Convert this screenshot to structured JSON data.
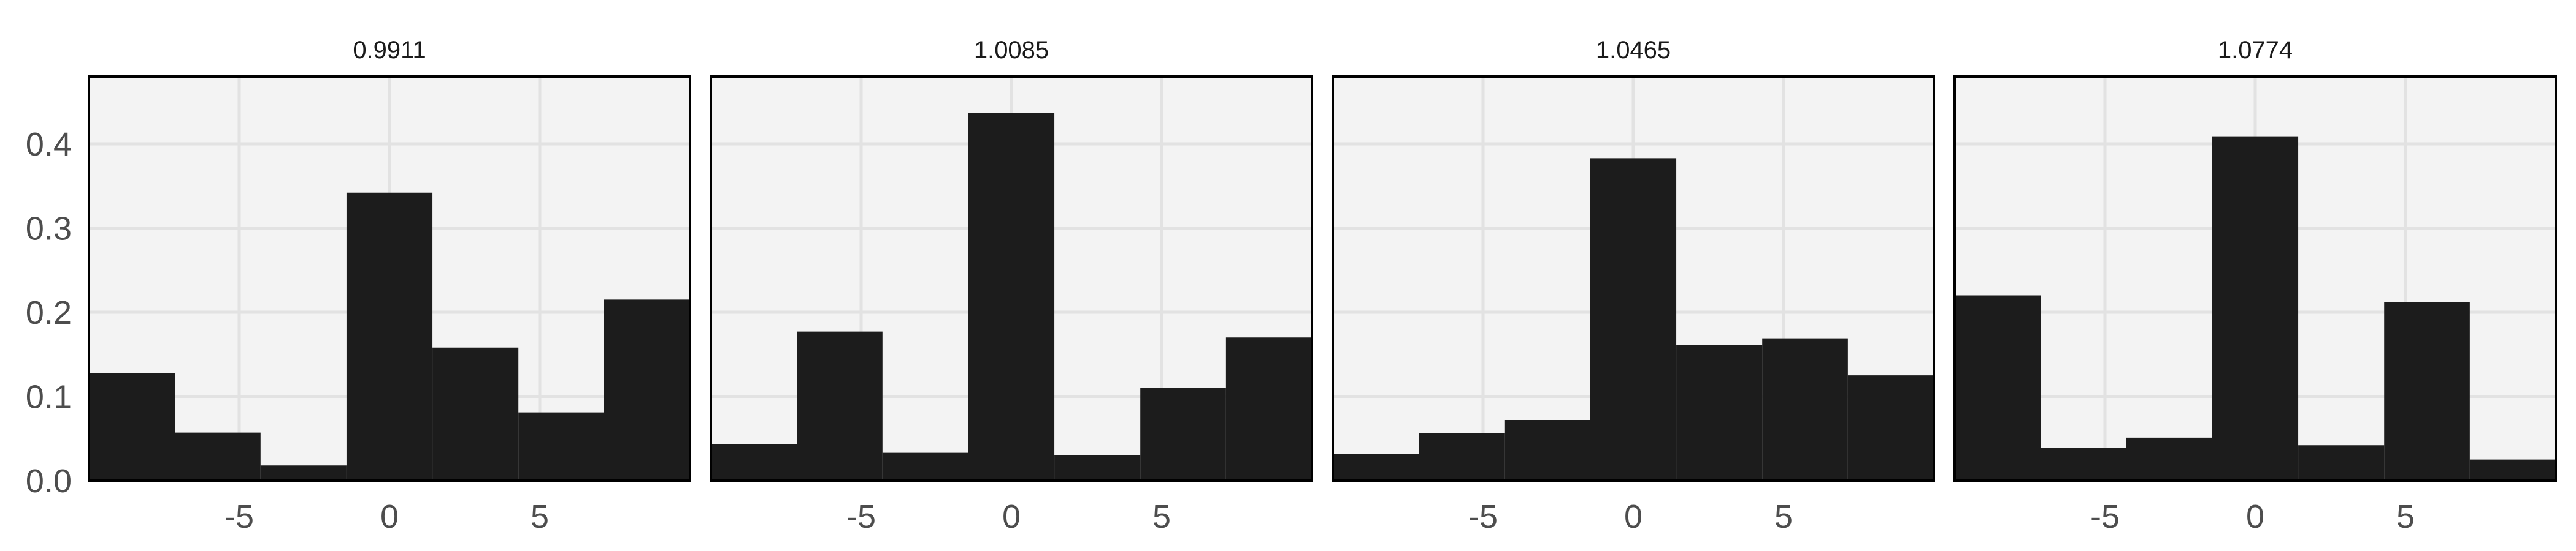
{
  "chart_data": {
    "type": "bar",
    "title": "",
    "xlabel": "",
    "ylabel": "",
    "x_ticks": [
      -5,
      0,
      5
    ],
    "y_ticks": [
      0.0,
      0.1,
      0.2,
      0.3,
      0.4
    ],
    "y_tick_labels": [
      "0.0",
      "0.1",
      "0.2",
      "0.3",
      "0.4"
    ],
    "x_tick_labels": [
      "-5",
      "0",
      "5"
    ],
    "xlim": [
      -10,
      10
    ],
    "ylim": [
      0,
      0.48
    ],
    "grid": true,
    "colors": {
      "bar": "#1c1c1c",
      "panel_background": "#f3f3f3",
      "grid": "#e2e2e2",
      "panel_border": "#000000"
    },
    "panels": [
      {
        "title": "0.9911",
        "bins": [
          {
            "x0": -10.0,
            "x1": -7.14,
            "value": 0.128
          },
          {
            "x0": -7.14,
            "x1": -4.29,
            "value": 0.057
          },
          {
            "x0": -4.29,
            "x1": -1.43,
            "value": 0.018
          },
          {
            "x0": -1.43,
            "x1": 1.43,
            "value": 0.342
          },
          {
            "x0": 1.43,
            "x1": 4.29,
            "value": 0.158
          },
          {
            "x0": 4.29,
            "x1": 7.14,
            "value": 0.081
          },
          {
            "x0": 7.14,
            "x1": 10.0,
            "value": 0.215
          }
        ]
      },
      {
        "title": "1.0085",
        "bins": [
          {
            "x0": -10.0,
            "x1": -7.14,
            "value": 0.043
          },
          {
            "x0": -7.14,
            "x1": -4.29,
            "value": 0.177
          },
          {
            "x0": -4.29,
            "x1": -1.43,
            "value": 0.033
          },
          {
            "x0": -1.43,
            "x1": 1.43,
            "value": 0.437
          },
          {
            "x0": 1.43,
            "x1": 4.29,
            "value": 0.03
          },
          {
            "x0": 4.29,
            "x1": 7.14,
            "value": 0.11
          },
          {
            "x0": 7.14,
            "x1": 10.0,
            "value": 0.17
          }
        ]
      },
      {
        "title": "1.0465",
        "bins": [
          {
            "x0": -10.0,
            "x1": -7.14,
            "value": 0.032
          },
          {
            "x0": -7.14,
            "x1": -4.29,
            "value": 0.056
          },
          {
            "x0": -4.29,
            "x1": -1.43,
            "value": 0.072
          },
          {
            "x0": -1.43,
            "x1": 1.43,
            "value": 0.383
          },
          {
            "x0": 1.43,
            "x1": 4.29,
            "value": 0.161
          },
          {
            "x0": 4.29,
            "x1": 7.14,
            "value": 0.169
          },
          {
            "x0": 7.14,
            "x1": 10.0,
            "value": 0.125
          }
        ]
      },
      {
        "title": "1.0774",
        "bins": [
          {
            "x0": -10.0,
            "x1": -7.14,
            "value": 0.22
          },
          {
            "x0": -7.14,
            "x1": -4.29,
            "value": 0.039
          },
          {
            "x0": -4.29,
            "x1": -1.43,
            "value": 0.051
          },
          {
            "x0": -1.43,
            "x1": 1.43,
            "value": 0.409
          },
          {
            "x0": 1.43,
            "x1": 4.29,
            "value": 0.042
          },
          {
            "x0": 4.29,
            "x1": 7.14,
            "value": 0.212
          },
          {
            "x0": 7.14,
            "x1": 10.0,
            "value": 0.025
          }
        ]
      }
    ]
  }
}
